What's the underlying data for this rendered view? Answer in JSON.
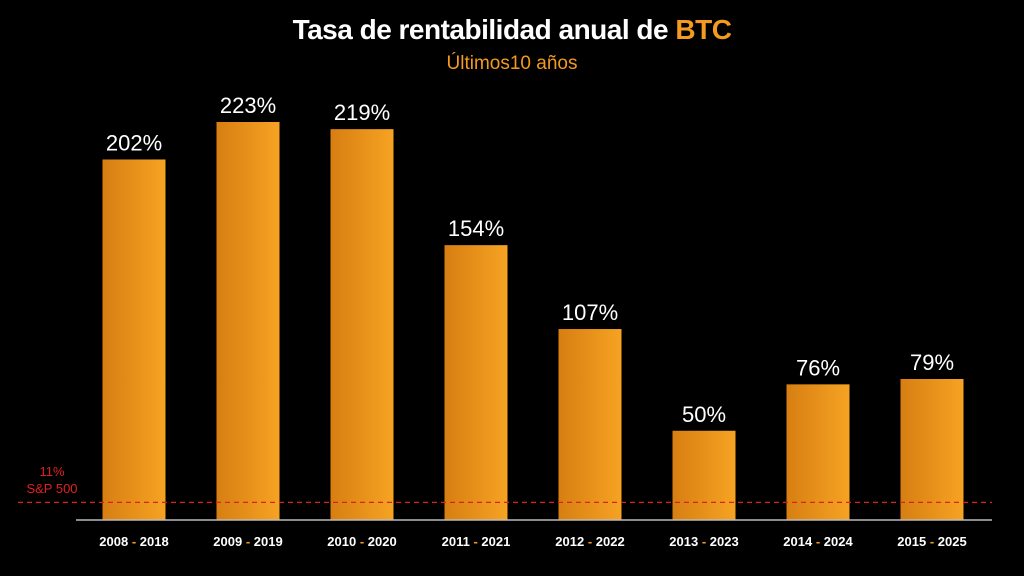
{
  "chart_data": {
    "type": "bar",
    "title_prefix": "Tasa de rentabilidad anual de ",
    "title_highlight": "BTC",
    "subtitle": "Últimos10 años",
    "categories": [
      {
        "start": "2008",
        "end": "2018"
      },
      {
        "start": "2009",
        "end": "2019"
      },
      {
        "start": "2010",
        "end": "2020"
      },
      {
        "start": "2011",
        "end": "2021"
      },
      {
        "start": "2012",
        "end": "2022"
      },
      {
        "start": "2013",
        "end": "2023"
      },
      {
        "start": "2014",
        "end": "2024"
      },
      {
        "start": "2015",
        "end": "2025"
      }
    ],
    "category_separator": "-",
    "values": [
      202,
      223,
      219,
      154,
      107,
      50,
      76,
      79
    ],
    "value_labels": [
      "202%",
      "223%",
      "219%",
      "154%",
      "107%",
      "50%",
      "76%",
      "79%"
    ],
    "ylim": [
      0,
      240
    ],
    "grid": false,
    "reference_line": {
      "value": 11,
      "label_value": "11%",
      "label_name": "S&P 500",
      "style": "dashed"
    },
    "colors": {
      "background": "#000000",
      "bar_light": "#f6a323",
      "bar_dark": "#d77e12",
      "accent": "#f39a1f",
      "reference": "#e02020",
      "separator": "#f39a1f",
      "axis": "#bbbbbb",
      "text": "#ffffff"
    }
  }
}
